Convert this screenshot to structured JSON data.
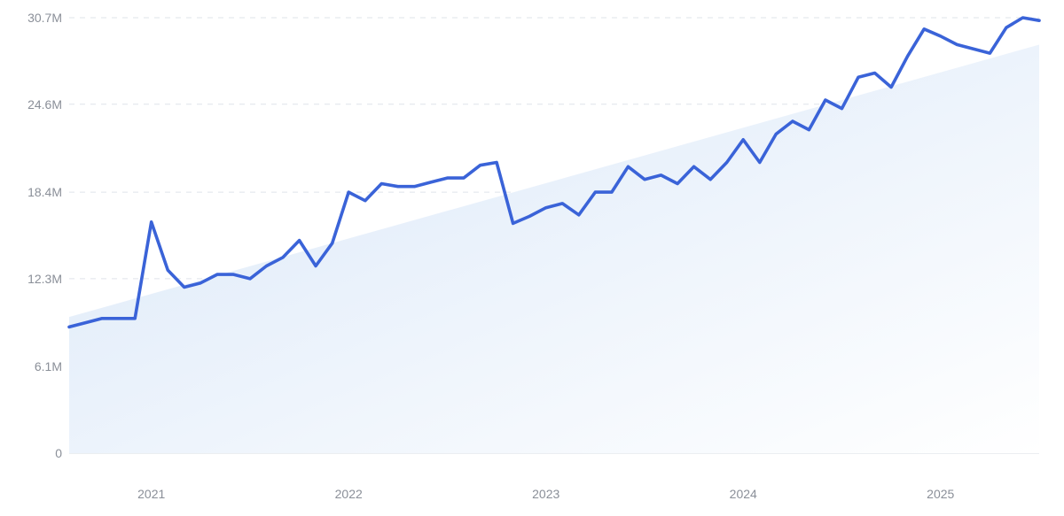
{
  "chart_data": {
    "type": "line",
    "title": "",
    "xlabel": "",
    "ylabel": "",
    "x_axis": {
      "type": "date",
      "range": [
        "2020-08",
        "2025-07"
      ],
      "ticks": [
        "2021",
        "2022",
        "2023",
        "2024",
        "2025"
      ]
    },
    "y_axis": {
      "range": [
        0,
        30.7
      ],
      "ticks": [
        0,
        6.1,
        12.3,
        18.4,
        24.6,
        30.7
      ],
      "tick_labels": [
        "0",
        "6.1M",
        "12.3M",
        "18.4M",
        "24.6M",
        "30.7M"
      ]
    },
    "grid": true,
    "legend": "none",
    "colors": {
      "line": "#3a63d8",
      "trend_fill_top": "#d9e7f8",
      "trend_fill_bottom": "#ffffff"
    },
    "trend": {
      "x": [
        "2020-08",
        "2025-07"
      ],
      "y": [
        9.6,
        28.8
      ]
    },
    "series": [
      {
        "x": [
          "2020-08",
          "2020-09",
          "2020-10",
          "2020-11",
          "2020-12",
          "2021-01",
          "2021-02",
          "2021-03",
          "2021-04",
          "2021-05",
          "2021-06",
          "2021-07",
          "2021-08",
          "2021-09",
          "2021-10",
          "2021-11",
          "2021-12",
          "2022-01",
          "2022-02",
          "2022-03",
          "2022-04",
          "2022-05",
          "2022-06",
          "2022-07",
          "2022-08",
          "2022-09",
          "2022-10",
          "2022-11",
          "2022-12",
          "2023-01",
          "2023-02",
          "2023-03",
          "2023-04",
          "2023-05",
          "2023-06",
          "2023-07",
          "2023-08",
          "2023-09",
          "2023-10",
          "2023-11",
          "2023-12",
          "2024-01",
          "2024-02",
          "2024-03",
          "2024-04",
          "2024-05",
          "2024-06",
          "2024-07",
          "2024-08",
          "2024-09",
          "2024-10",
          "2024-11",
          "2024-12",
          "2025-01",
          "2025-02",
          "2025-03",
          "2025-04",
          "2025-05",
          "2025-06",
          "2025-07"
        ],
        "y": [
          8.9,
          9.2,
          9.5,
          9.5,
          9.5,
          16.3,
          12.9,
          11.7,
          12.0,
          12.6,
          12.6,
          12.3,
          13.2,
          13.8,
          15.0,
          13.2,
          14.8,
          18.4,
          17.8,
          19.0,
          18.8,
          18.8,
          19.1,
          19.4,
          19.4,
          20.3,
          20.5,
          16.2,
          16.7,
          17.3,
          17.6,
          16.8,
          18.4,
          18.4,
          20.2,
          19.3,
          19.6,
          19.0,
          20.2,
          19.3,
          20.5,
          22.1,
          20.5,
          22.5,
          23.4,
          22.8,
          24.9,
          24.3,
          26.5,
          26.8,
          25.8,
          28.0,
          29.9,
          29.4,
          28.8,
          28.5,
          28.2,
          30.0,
          30.7,
          30.5
        ]
      }
    ]
  }
}
